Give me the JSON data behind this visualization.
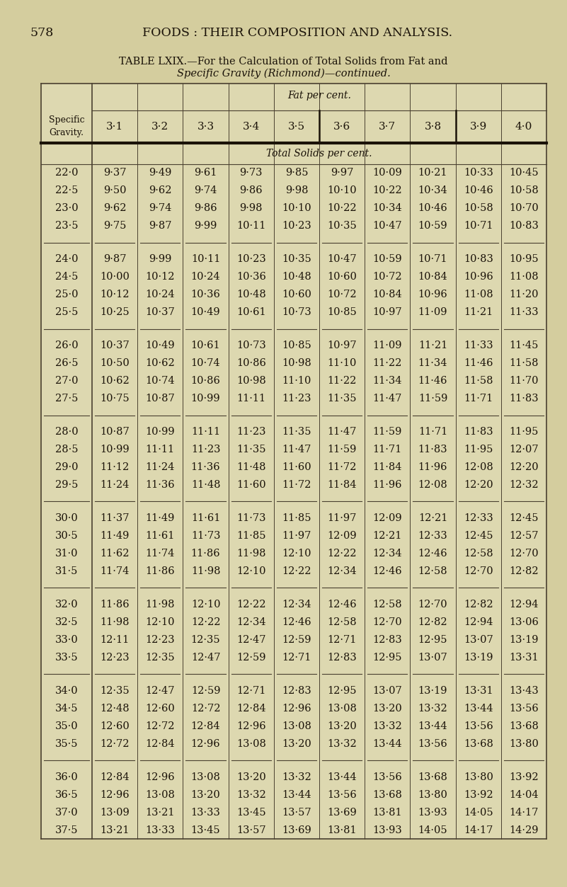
{
  "page_number": "578",
  "header_line1": "FOODS : THEIR COMPOSITION AND ANALYSIS.",
  "title_line1": "TABLE LXIX.—For the Calculation of Total Solids from Fat and",
  "title_line2": "Specific Gravity (Richmond)—continued.",
  "col_header_top": "Fat per cent.",
  "col_header_mid": "Total Solids per cent.",
  "fat_cols": [
    "3·1",
    "3·2",
    "3·3",
    "3·4",
    "3·5",
    "3·6",
    "3·7",
    "3·8",
    "3·9",
    "4·0"
  ],
  "rows": [
    [
      "22·0",
      "9·37",
      "9·49",
      "9·61",
      "9·73",
      "9·85",
      "9·97",
      "10·09",
      "10·21",
      "10·33",
      "10·45"
    ],
    [
      "22·5",
      "9·50",
      "9·62",
      "9·74",
      "9·86",
      "9·98",
      "10·10",
      "10·22",
      "10·34",
      "10·46",
      "10·58"
    ],
    [
      "23·0",
      "9·62",
      "9·74",
      "9·86",
      "9·98",
      "10·10",
      "10·22",
      "10·34",
      "10·46",
      "10·58",
      "10·70"
    ],
    [
      "23·5",
      "9·75",
      "9·87",
      "9·99",
      "10·11",
      "10·23",
      "10·35",
      "10·47",
      "10·59",
      "10·71",
      "10·83"
    ],
    [
      "24·0",
      "9·87",
      "9·99",
      "10·11",
      "10·23",
      "10·35",
      "10·47",
      "10·59",
      "10·71",
      "10·83",
      "10·95"
    ],
    [
      "24·5",
      "10·00",
      "10·12",
      "10·24",
      "10·36",
      "10·48",
      "10·60",
      "10·72",
      "10·84",
      "10·96",
      "11·08"
    ],
    [
      "25·0",
      "10·12",
      "10·24",
      "10·36",
      "10·48",
      "10·60",
      "10·72",
      "10·84",
      "10·96",
      "11·08",
      "11·20"
    ],
    [
      "25·5",
      "10·25",
      "10·37",
      "10·49",
      "10·61",
      "10·73",
      "10·85",
      "10·97",
      "11·09",
      "11·21",
      "11·33"
    ],
    [
      "26·0",
      "10·37",
      "10·49",
      "10·61",
      "10·73",
      "10·85",
      "10·97",
      "11·09",
      "11·21",
      "11·33",
      "11·45"
    ],
    [
      "26·5",
      "10·50",
      "10·62",
      "10·74",
      "10·86",
      "10·98",
      "11·10",
      "11·22",
      "11·34",
      "11·46",
      "11·58"
    ],
    [
      "27·0",
      "10·62",
      "10·74",
      "10·86",
      "10·98",
      "11·10",
      "11·22",
      "11·34",
      "11·46",
      "11·58",
      "11·70"
    ],
    [
      "27·5",
      "10·75",
      "10·87",
      "10·99",
      "11·11",
      "11·23",
      "11·35",
      "11·47",
      "11·59",
      "11·71",
      "11·83"
    ],
    [
      "28·0",
      "10·87",
      "10·99",
      "11·11",
      "11·23",
      "11·35",
      "11·47",
      "11·59",
      "11·71",
      "11·83",
      "11·95"
    ],
    [
      "28·5",
      "10·99",
      "11·11",
      "11·23",
      "11·35",
      "11·47",
      "11·59",
      "11·71",
      "11·83",
      "11·95",
      "12·07"
    ],
    [
      "29·0",
      "11·12",
      "11·24",
      "11·36",
      "11·48",
      "11·60",
      "11·72",
      "11·84",
      "11·96",
      "12·08",
      "12·20"
    ],
    [
      "29·5",
      "11·24",
      "11·36",
      "11·48",
      "11·60",
      "11·72",
      "11·84",
      "11·96",
      "12·08",
      "12·20",
      "12·32"
    ],
    [
      "30·0",
      "11·37",
      "11·49",
      "11·61",
      "11·73",
      "11·85",
      "11·97",
      "12·09",
      "12·21",
      "12·33",
      "12·45"
    ],
    [
      "30·5",
      "11·49",
      "11·61",
      "11·73",
      "11·85",
      "11·97",
      "12·09",
      "12·21",
      "12·33",
      "12·45",
      "12·57"
    ],
    [
      "31·0",
      "11·62",
      "11·74",
      "11·86",
      "11·98",
      "12·10",
      "12·22",
      "12·34",
      "12·46",
      "12·58",
      "12·70"
    ],
    [
      "31·5",
      "11·74",
      "11·86",
      "11·98",
      "12·10",
      "12·22",
      "12·34",
      "12·46",
      "12·58",
      "12·70",
      "12·82"
    ],
    [
      "32·0",
      "11·86",
      "11·98",
      "12·10",
      "12·22",
      "12·34",
      "12·46",
      "12·58",
      "12·70",
      "12·82",
      "12·94"
    ],
    [
      "32·5",
      "11·98",
      "12·10",
      "12·22",
      "12·34",
      "12·46",
      "12·58",
      "12·70",
      "12·82",
      "12·94",
      "13·06"
    ],
    [
      "33·0",
      "12·11",
      "12·23",
      "12·35",
      "12·47",
      "12·59",
      "12·71",
      "12·83",
      "12·95",
      "13·07",
      "13·19"
    ],
    [
      "33·5",
      "12·23",
      "12·35",
      "12·47",
      "12·59",
      "12·71",
      "12·83",
      "12·95",
      "13·07",
      "13·19",
      "13·31"
    ],
    [
      "34·0",
      "12·35",
      "12·47",
      "12·59",
      "12·71",
      "12·83",
      "12·95",
      "13·07",
      "13·19",
      "13·31",
      "13·43"
    ],
    [
      "34·5",
      "12·48",
      "12·60",
      "12·72",
      "12·84",
      "12·96",
      "13·08",
      "13·20",
      "13·32",
      "13·44",
      "13·56"
    ],
    [
      "35·0",
      "12·60",
      "12·72",
      "12·84",
      "12·96",
      "13·08",
      "13·20",
      "13·32",
      "13·44",
      "13·56",
      "13·68"
    ],
    [
      "35·5",
      "12·72",
      "12·84",
      "12·96",
      "13·08",
      "13·20",
      "13·32",
      "13·44",
      "13·56",
      "13·68",
      "13·80"
    ],
    [
      "36·0",
      "12·84",
      "12·96",
      "13·08",
      "13·20",
      "13·32",
      "13·44",
      "13·56",
      "13·68",
      "13·80",
      "13·92"
    ],
    [
      "36·5",
      "12·96",
      "13·08",
      "13·20",
      "13·32",
      "13·44",
      "13·56",
      "13·68",
      "13·80",
      "13·92",
      "14·04"
    ],
    [
      "37·0",
      "13·09",
      "13·21",
      "13·33",
      "13·45",
      "13·57",
      "13·69",
      "13·81",
      "13·93",
      "14·05",
      "14·17"
    ],
    [
      "37·5",
      "13·21",
      "13·33",
      "13·45",
      "13·57",
      "13·69",
      "13·81",
      "13·93",
      "14·05",
      "14·17",
      "14·29"
    ]
  ],
  "bg_color": "#cfc89a",
  "page_bg": "#d4cd9e",
  "text_color": "#1a1208",
  "line_color": "#4a4030",
  "thick_line_color": "#1a1208"
}
